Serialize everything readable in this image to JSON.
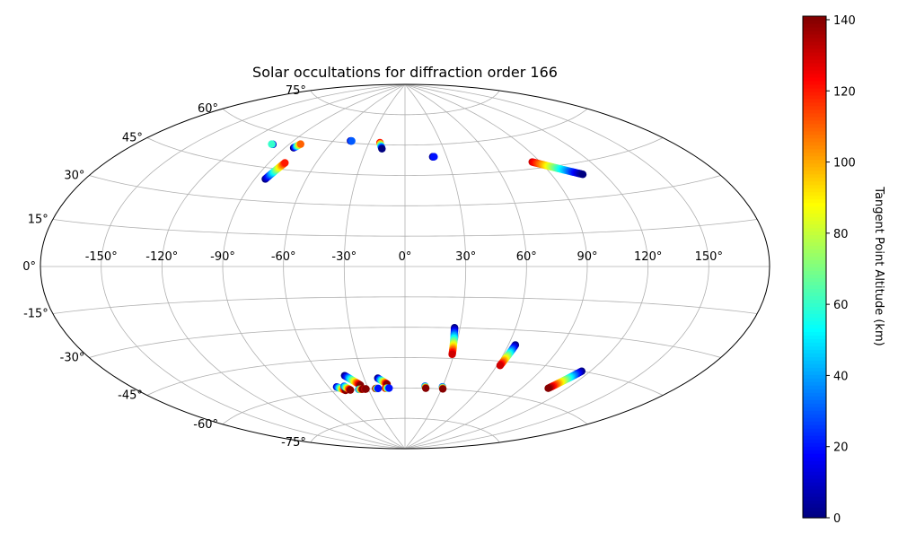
{
  "chart_data": {
    "type": "scatter",
    "projection": "aitoff",
    "title": "Solar occultations for diffraction order 166",
    "grid": true,
    "lon_ticks": [
      -150,
      -120,
      -90,
      -60,
      -30,
      0,
      30,
      60,
      90,
      120,
      150
    ],
    "lat_ticks": [
      -75,
      -60,
      -45,
      -30,
      -15,
      0,
      15,
      30,
      45,
      60,
      75
    ],
    "lon_tick_labels": [
      "-150°",
      "-120°",
      "-90°",
      "-60°",
      "-30°",
      "0°",
      "30°",
      "60°",
      "90°",
      "120°",
      "150°"
    ],
    "lat_tick_labels": [
      "-75°",
      "-60°",
      "-45°",
      "-30°",
      "-15°",
      "0°",
      "15°",
      "30°",
      "45°",
      "60°",
      "75°"
    ],
    "colorbar": {
      "label": "Tangent Point Altitude (km)",
      "range": [
        0,
        141
      ],
      "ticks": [
        0,
        20,
        40,
        60,
        80,
        100,
        120,
        140
      ],
      "tick_labels": [
        "0",
        "20",
        "40",
        "60",
        "80",
        "100",
        "120",
        "140"
      ],
      "colormap": "jet"
    },
    "tracks": [
      {
        "lon_start": -101,
        "lat_start": 55,
        "lon_end": -102,
        "lat_end": 55,
        "alt_start": 0,
        "alt_end": 60
      },
      {
        "lon_start": -84,
        "lat_start": 55,
        "lon_end": -82,
        "lat_end": 57,
        "alt_start": 0,
        "alt_end": 110
      },
      {
        "lon_start": -84,
        "lat_start": 40,
        "lon_end": -80,
        "lat_end": 48,
        "alt_start": 0,
        "alt_end": 120
      },
      {
        "lon_start": -46,
        "lat_start": 61,
        "lon_end": -45,
        "lat_end": 61,
        "alt_start": 0,
        "alt_end": 30
      },
      {
        "lon_start": -21,
        "lat_start": 61,
        "lon_end": -18,
        "lat_end": 58,
        "alt_start": 120,
        "alt_end": 0
      },
      {
        "lon_start": 20,
        "lat_start": 54,
        "lon_end": 21,
        "lat_end": 54,
        "alt_start": 0,
        "alt_end": 20
      },
      {
        "lon_start": 85,
        "lat_start": 48,
        "lon_end": 108,
        "lat_end": 40,
        "alt_start": 130,
        "alt_end": 0
      },
      {
        "lon_start": -54,
        "lat_start": -58,
        "lon_end": -49,
        "lat_end": -60,
        "alt_start": 10,
        "alt_end": 140
      },
      {
        "lon_start": -48,
        "lat_start": -58,
        "lon_end": -45,
        "lat_end": -60,
        "alt_start": 30,
        "alt_end": 140
      },
      {
        "lon_start": -43,
        "lat_start": -53,
        "lon_end": -35,
        "lat_end": -58,
        "alt_start": 0,
        "alt_end": 140
      },
      {
        "lon_start": -38,
        "lat_start": -60,
        "lon_end": -35,
        "lat_end": -60,
        "alt_start": 40,
        "alt_end": 140
      },
      {
        "lon_start": -33,
        "lat_start": -60,
        "lon_end": -32,
        "lat_end": -60,
        "alt_start": 130,
        "alt_end": 140
      },
      {
        "lon_start": -24,
        "lat_start": -60,
        "lon_end": -22,
        "lat_end": -60,
        "alt_start": 140,
        "alt_end": 20
      },
      {
        "lon_start": -20,
        "lat_start": -55,
        "lon_end": -14,
        "lat_end": -58,
        "alt_start": 0,
        "alt_end": 140
      },
      {
        "lon_start": -16,
        "lat_start": -60,
        "lon_end": -13,
        "lat_end": -60,
        "alt_start": 130,
        "alt_end": 20
      },
      {
        "lon_start": 16,
        "lat_start": -59,
        "lon_end": 17,
        "lat_end": -60,
        "alt_start": 30,
        "alt_end": 140
      },
      {
        "lon_start": 30,
        "lat_start": -59,
        "lon_end": 31,
        "lat_end": -60,
        "alt_start": 30,
        "alt_end": 140
      },
      {
        "lon_start": 27,
        "lat_start": -30,
        "lon_end": 29,
        "lat_end": -43,
        "alt_start": 0,
        "alt_end": 130
      },
      {
        "lon_start": 64,
        "lat_start": -37,
        "lon_end": 62,
        "lat_end": -47,
        "alt_start": 0,
        "alt_end": 130
      },
      {
        "lon_start": 115,
        "lat_start": -45,
        "lon_end": 108,
        "lat_end": -54,
        "alt_start": 0,
        "alt_end": 140
      }
    ]
  }
}
